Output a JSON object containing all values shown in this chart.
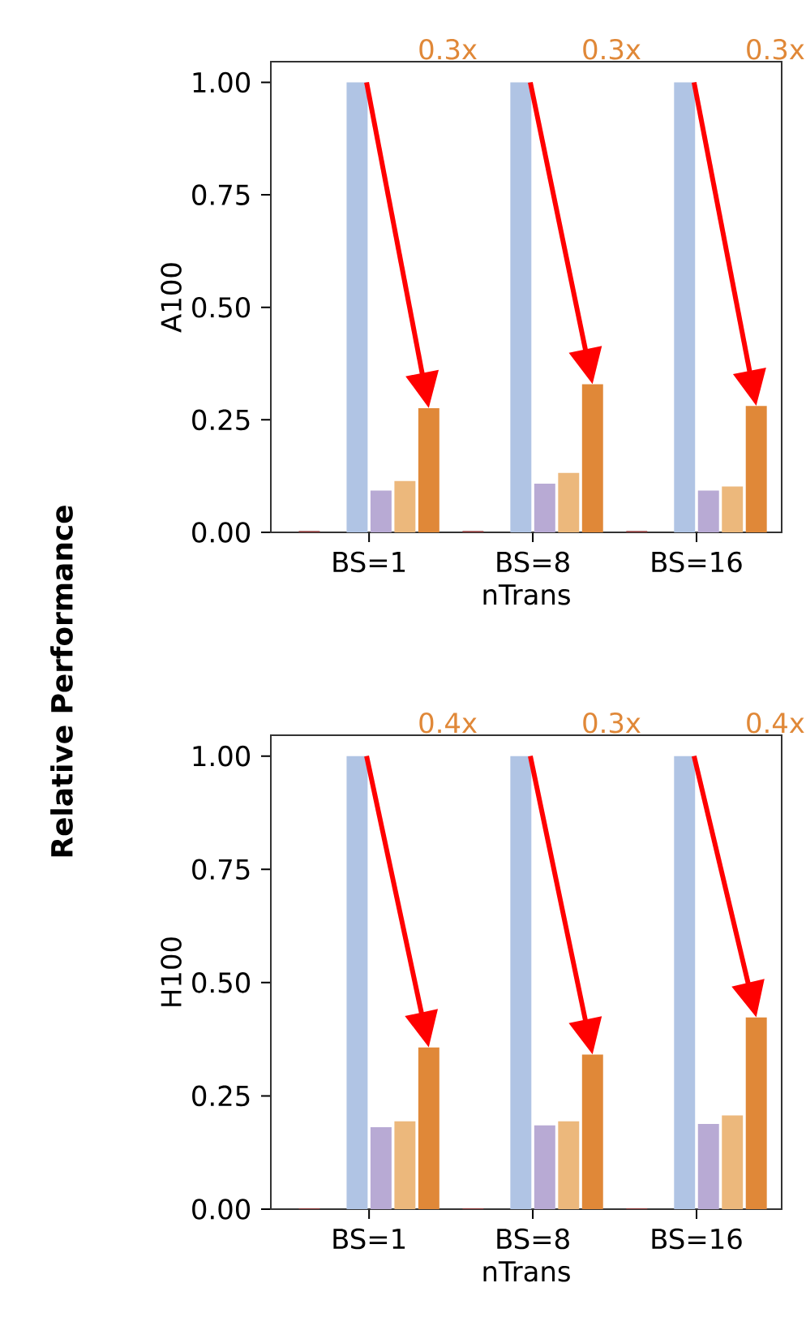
{
  "chart_data": [
    {
      "type": "bar",
      "ylabel": "A100",
      "xlabel": "nTrans",
      "categories": [
        "BS=1",
        "BS=8",
        "BS=16"
      ],
      "series": [
        {
          "color": "#8b3a3a",
          "values": [
            0.003,
            0.003,
            0.003
          ]
        },
        {
          "values": [
            null,
            null,
            null
          ]
        },
        {
          "color": "#b0c4e4",
          "values": [
            1.0,
            1.0,
            1.0
          ]
        },
        {
          "color": "#b8aad4",
          "values": [
            0.093,
            0.108,
            0.093
          ]
        },
        {
          "color": "#ecb87c",
          "values": [
            0.114,
            0.132,
            0.102
          ]
        },
        {
          "color": "#e08838",
          "values": [
            0.276,
            0.329,
            0.281
          ]
        }
      ],
      "ylim": [
        0,
        1.046
      ],
      "yticks": [
        {
          "value": 0,
          "label": "0.00"
        },
        {
          "value": 0.25,
          "label": "0.25"
        },
        {
          "value": 0.5,
          "label": "0.50"
        },
        {
          "value": 0.75,
          "label": "0.75"
        },
        {
          "value": 1,
          "label": "1.00"
        }
      ],
      "annotations": [
        "0.3x",
        "0.3x",
        "0.3x",
        "Relative Performance"
      ]
    },
    {
      "type": "bar",
      "ylabel": "H100",
      "xlabel": "nTrans",
      "categories": [
        "BS=1",
        "BS=8",
        "BS=16"
      ],
      "series": [
        {
          "color": "#8b3a3a",
          "values": [
            0.002,
            0.002,
            0.002
          ]
        },
        {
          "values": [
            null,
            null,
            null
          ]
        },
        {
          "color": "#b0c4e4",
          "values": [
            1.0,
            1.0,
            1.0
          ]
        },
        {
          "color": "#b8aad4",
          "values": [
            0.181,
            0.185,
            0.188
          ]
        },
        {
          "color": "#ecb87c",
          "values": [
            0.194,
            0.194,
            0.207
          ]
        },
        {
          "color": "#e08838",
          "values": [
            0.357,
            0.341,
            0.423
          ]
        }
      ],
      "ylim": [
        0,
        1.046
      ],
      "yticks": [
        {
          "value": 0,
          "label": "0.00"
        },
        {
          "value": 0.25,
          "label": "0.25"
        },
        {
          "value": 0.5,
          "label": "0.50"
        },
        {
          "value": 0.75,
          "label": "0.75"
        },
        {
          "value": 1,
          "label": "1.00"
        }
      ],
      "annotations": [
        "0.4x",
        "0.3x",
        "0.4x"
      ]
    }
  ]
}
